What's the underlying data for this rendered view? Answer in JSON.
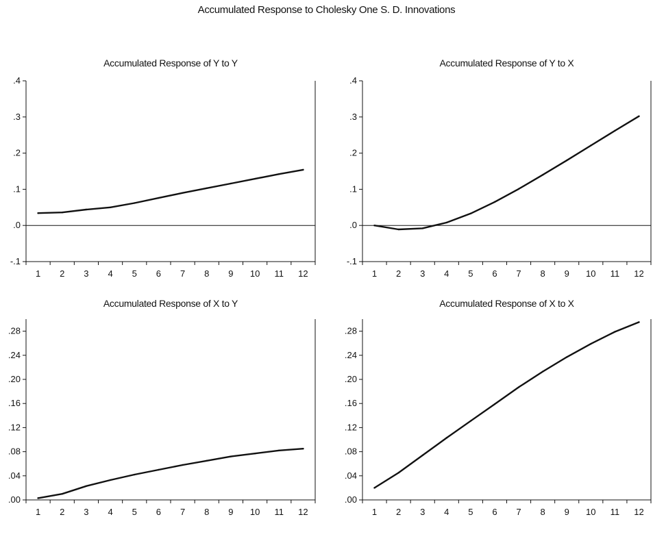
{
  "figure": {
    "title": "Accumulated Response to Cholesky One S. D. Innovations"
  },
  "chart_data": [
    {
      "type": "line",
      "title": "Accumulated Response of Y to Y",
      "x": [
        1,
        2,
        3,
        4,
        5,
        6,
        7,
        8,
        9,
        10,
        11,
        12
      ],
      "series": [
        {
          "values": [
            0.034,
            0.036,
            0.044,
            0.05,
            0.062,
            0.076,
            0.09,
            0.103,
            0.116,
            0.129,
            0.142,
            0.154
          ]
        }
      ],
      "ylim": [
        -0.1,
        0.4
      ],
      "yticks": [
        -0.1,
        0.0,
        0.1,
        0.2,
        0.3,
        0.4
      ],
      "ytick_labels": [
        "-.1",
        ".0",
        ".1",
        ".2",
        ".3",
        ".4"
      ],
      "xticks": [
        "1",
        "2",
        "3",
        "4",
        "5",
        "6",
        "7",
        "8",
        "9",
        "10",
        "11",
        "12"
      ],
      "zero_line": true,
      "grid": false,
      "xlabel": "",
      "ylabel": ""
    },
    {
      "type": "line",
      "title": "Accumulated Response of Y to X",
      "x": [
        1,
        2,
        3,
        4,
        5,
        6,
        7,
        8,
        9,
        10,
        11,
        12
      ],
      "series": [
        {
          "values": [
            0.0,
            -0.011,
            -0.008,
            0.008,
            0.033,
            0.065,
            0.101,
            0.14,
            0.18,
            0.221,
            0.262,
            0.302
          ]
        }
      ],
      "ylim": [
        -0.1,
        0.4
      ],
      "yticks": [
        -0.1,
        0.0,
        0.1,
        0.2,
        0.3,
        0.4
      ],
      "ytick_labels": [
        "-.1",
        ".0",
        ".1",
        ".2",
        ".3",
        ".4"
      ],
      "xticks": [
        "1",
        "2",
        "3",
        "4",
        "5",
        "6",
        "7",
        "8",
        "9",
        "10",
        "11",
        "12"
      ],
      "zero_line": true,
      "grid": false,
      "xlabel": "",
      "ylabel": ""
    },
    {
      "type": "line",
      "title": "Accumulated Response of X to Y",
      "x": [
        1,
        2,
        3,
        4,
        5,
        6,
        7,
        8,
        9,
        10,
        11,
        12
      ],
      "series": [
        {
          "values": [
            0.003,
            0.01,
            0.023,
            0.033,
            0.042,
            0.05,
            0.058,
            0.065,
            0.072,
            0.077,
            0.082,
            0.085
          ]
        }
      ],
      "ylim": [
        0.0,
        0.3
      ],
      "yticks": [
        0.0,
        0.04,
        0.08,
        0.12,
        0.16,
        0.2,
        0.24,
        0.28
      ],
      "ytick_labels": [
        ".00",
        ".04",
        ".08",
        ".12",
        ".16",
        ".20",
        ".24",
        ".28"
      ],
      "xticks": [
        "1",
        "2",
        "3",
        "4",
        "5",
        "6",
        "7",
        "8",
        "9",
        "10",
        "11",
        "12"
      ],
      "zero_line": false,
      "grid": false,
      "xlabel": "",
      "ylabel": ""
    },
    {
      "type": "line",
      "title": "Accumulated Response of X to X",
      "x": [
        1,
        2,
        3,
        4,
        5,
        6,
        7,
        8,
        9,
        10,
        11,
        12
      ],
      "series": [
        {
          "values": [
            0.02,
            0.045,
            0.074,
            0.103,
            0.131,
            0.159,
            0.187,
            0.213,
            0.237,
            0.259,
            0.279,
            0.295
          ]
        }
      ],
      "ylim": [
        0.0,
        0.3
      ],
      "yticks": [
        0.0,
        0.04,
        0.08,
        0.12,
        0.16,
        0.2,
        0.24,
        0.28
      ],
      "ytick_labels": [
        ".00",
        ".04",
        ".08",
        ".12",
        ".16",
        ".20",
        ".24",
        ".28"
      ],
      "xticks": [
        "1",
        "2",
        "3",
        "4",
        "5",
        "6",
        "7",
        "8",
        "9",
        "10",
        "11",
        "12"
      ],
      "zero_line": false,
      "grid": false,
      "xlabel": "",
      "ylabel": ""
    }
  ]
}
